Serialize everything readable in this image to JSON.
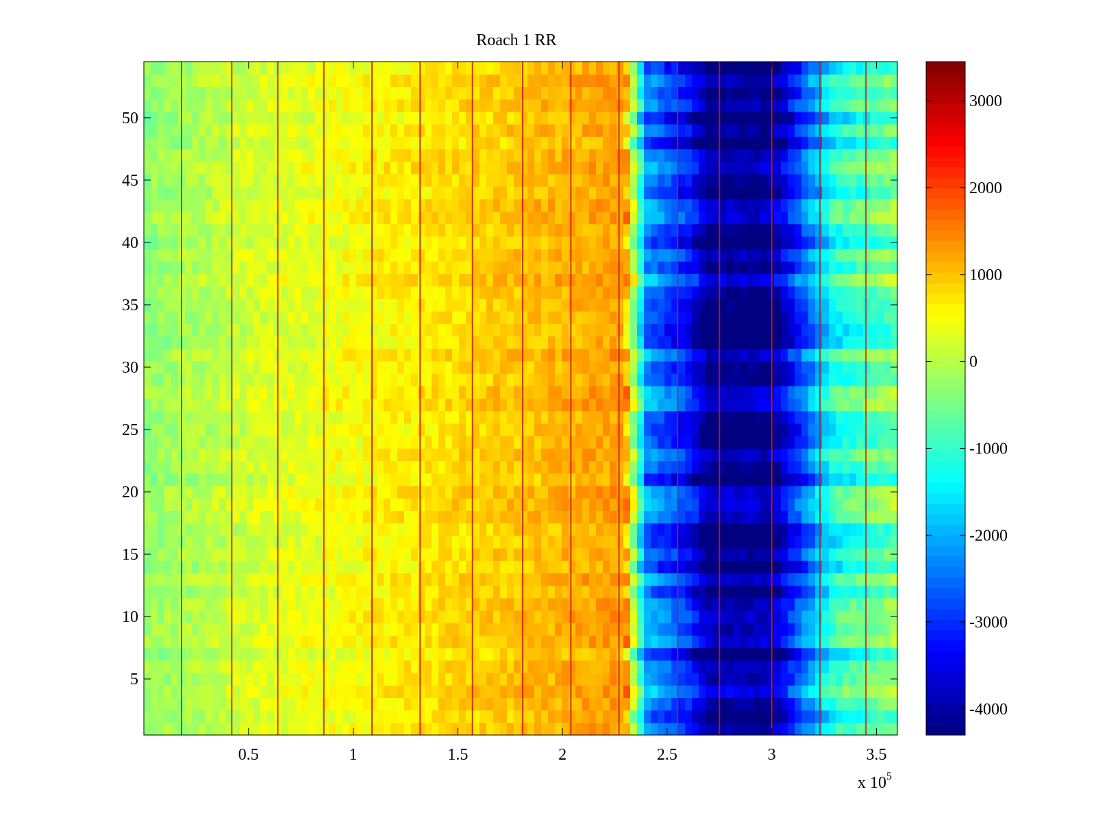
{
  "chart_data": {
    "type": "heatmap",
    "title": "Roach 1 RR",
    "xlabel": "",
    "ylabel": "",
    "xlim": [
      0,
      360000
    ],
    "ylim": [
      0.5,
      54.5
    ],
    "x_multiplier_label": "x 10",
    "x_multiplier_exponent": "5",
    "x_ticks": [
      0.5,
      1,
      1.5,
      2,
      2.5,
      3,
      3.5
    ],
    "x_tick_labels": [
      "0.5",
      "1",
      "1.5",
      "2",
      "2.5",
      "3",
      "3.5"
    ],
    "y_ticks": [
      5,
      10,
      15,
      20,
      25,
      30,
      35,
      40,
      45,
      50
    ],
    "y_tick_labels": [
      "5",
      "10",
      "15",
      "20",
      "25",
      "30",
      "35",
      "40",
      "45",
      "50"
    ],
    "rows": 54,
    "colormap": "jet",
    "colorbar": {
      "clim": [
        -4300,
        3450
      ],
      "ticks": [
        3000,
        2000,
        1000,
        0,
        -1000,
        -2000,
        -3000,
        -4000
      ],
      "tick_labels": [
        "3000",
        "2000",
        "1000",
        "0",
        "-1000",
        "-2000",
        "-3000",
        "-4000"
      ]
    },
    "column_profile": [
      {
        "x": 0,
        "value": -300
      },
      {
        "x": 50000,
        "value": 200
      },
      {
        "x": 100000,
        "value": 500
      },
      {
        "x": 150000,
        "value": 800
      },
      {
        "x": 200000,
        "value": 1100
      },
      {
        "x": 230000,
        "value": 1300
      },
      {
        "x": 240000,
        "value": -2300
      },
      {
        "x": 260000,
        "value": -3200
      },
      {
        "x": 270000,
        "value": -4200
      },
      {
        "x": 300000,
        "value": -4200
      },
      {
        "x": 330000,
        "value": -1200
      },
      {
        "x": 360000,
        "value": -500
      }
    ],
    "red_stripes_x": [
      18000,
      42000,
      64000,
      86000,
      109000,
      132000,
      157000,
      181000,
      204000,
      227000,
      255000,
      275000,
      300000,
      323000,
      345000
    ]
  }
}
